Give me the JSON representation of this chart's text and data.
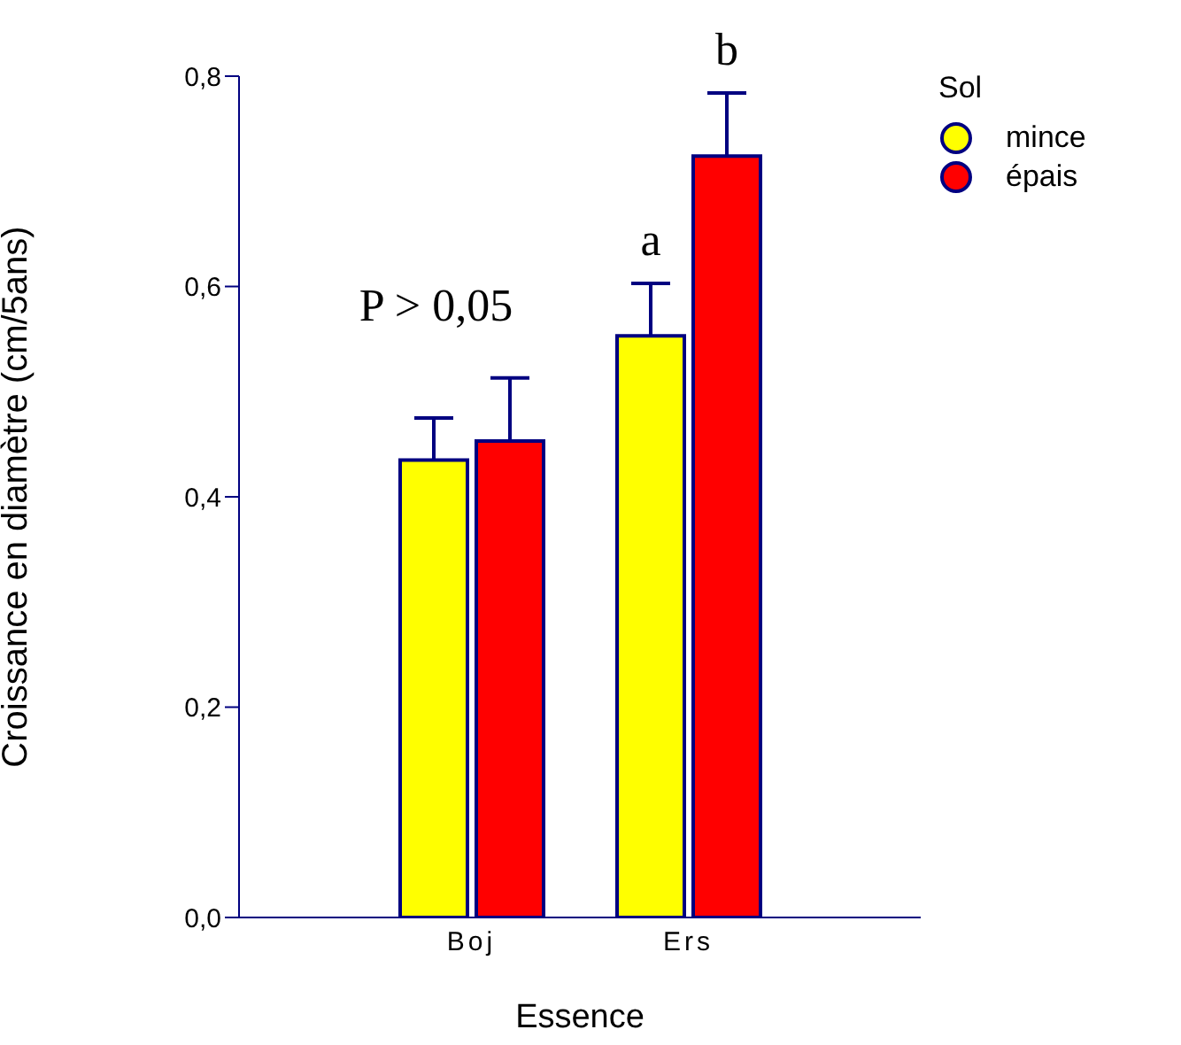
{
  "chart_data": {
    "type": "bar",
    "xlabel": "Essence",
    "ylabel": "Croissance en diamètre (cm/5ans)",
    "legend_title": "Sol",
    "categories": [
      "Boj",
      "Ers"
    ],
    "series": [
      {
        "name": "mince",
        "color": "#ffff00",
        "values": [
          0.435,
          0.553
        ],
        "errors": [
          [
            0.435,
            0.475
          ],
          [
            0.553,
            0.603
          ]
        ],
        "value_labels": [
          null,
          "a"
        ]
      },
      {
        "name": "épais",
        "color": "#ff0000",
        "values": [
          0.453,
          0.724
        ],
        "errors": [
          [
            0.453,
            0.513
          ],
          [
            0.724,
            0.784
          ]
        ],
        "value_labels": [
          null,
          "b"
        ]
      }
    ],
    "annotations": [
      "P > 0,05"
    ],
    "ylim": [
      0,
      0.8
    ],
    "yticks": [
      {
        "value": 0,
        "label": "0,0"
      },
      {
        "value": 0.2,
        "label": "0,2"
      },
      {
        "value": 0.4,
        "label": "0,4"
      },
      {
        "value": 0.6,
        "label": "0,6"
      },
      {
        "value": 0.8,
        "label": "0,8"
      }
    ],
    "grid": false,
    "legend": "top right"
  }
}
